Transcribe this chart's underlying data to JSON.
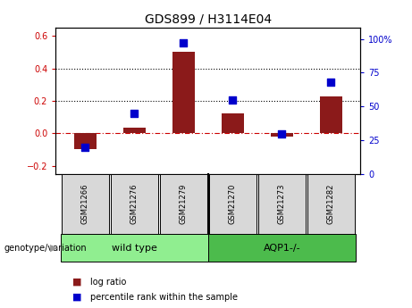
{
  "title": "GDS899 / H3114E04",
  "samples": [
    "GSM21266",
    "GSM21276",
    "GSM21279",
    "GSM21270",
    "GSM21273",
    "GSM21282"
  ],
  "log_ratio": [
    -0.095,
    0.035,
    0.5,
    0.125,
    -0.02,
    0.23
  ],
  "percentile_rank": [
    20,
    45,
    97,
    55,
    30,
    68
  ],
  "bar_color": "#8B1A1A",
  "dot_color": "#0000CC",
  "ylim_left": [
    -0.25,
    0.65
  ],
  "ylim_right": [
    0,
    108.33
  ],
  "yticks_left": [
    -0.2,
    0.0,
    0.2,
    0.4,
    0.6
  ],
  "yticks_right": [
    0,
    25,
    50,
    75,
    100
  ],
  "ytick_labels_right": [
    "0",
    "25",
    "50",
    "75",
    "100%"
  ],
  "hlines": [
    0.2,
    0.4
  ],
  "bar_width": 0.45,
  "dot_size": 35,
  "title_fontsize": 10,
  "tick_label_color_left": "#CC0000",
  "tick_label_color_right": "#0000CC",
  "group_label": "genotype/variation",
  "legend_log_ratio": "log ratio",
  "legend_percentile": "percentile rank within the sample",
  "bg_color": "#D8D8D8",
  "wt_color": "#90EE90",
  "aqp_color": "#4CBB4C"
}
